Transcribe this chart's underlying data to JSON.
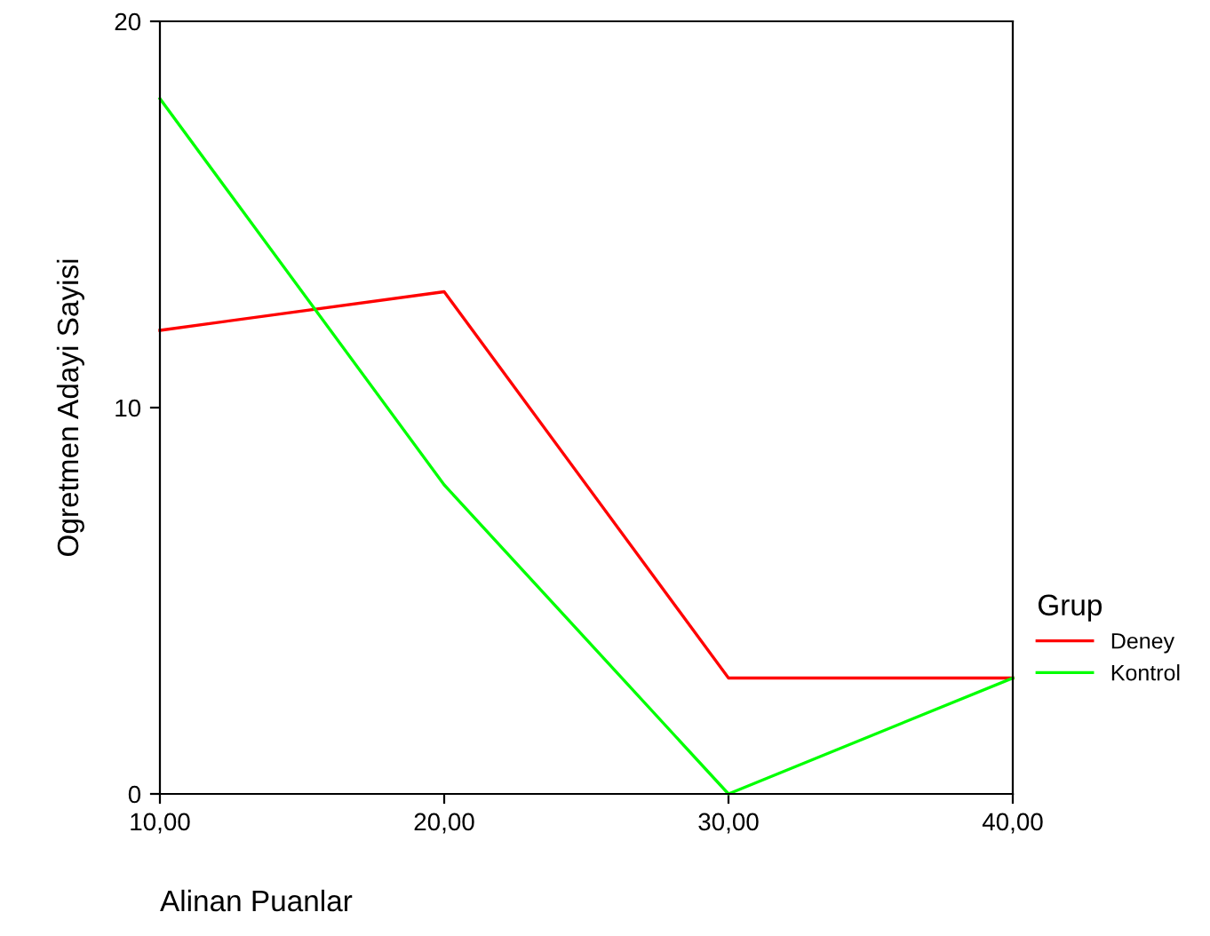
{
  "chart_data": {
    "type": "line",
    "xlabel": "Alinan Puanlar",
    "ylabel": "Ogretmen Adayi Sayisi",
    "legend_title": "Grup",
    "x": [
      10,
      20,
      30,
      40
    ],
    "series": [
      {
        "name": "Deney",
        "color": "#ff0000",
        "values": [
          12,
          13,
          3,
          3
        ]
      },
      {
        "name": "Kontrol",
        "color": "#00ff00",
        "values": [
          18,
          8,
          0,
          3
        ]
      }
    ],
    "xlim": [
      10,
      40
    ],
    "ylim": [
      0,
      20
    ],
    "xticks": [
      {
        "value": 10,
        "label": "10,00"
      },
      {
        "value": 20,
        "label": "20,00"
      },
      {
        "value": 30,
        "label": "30,00"
      },
      {
        "value": 40,
        "label": "40,00"
      }
    ],
    "yticks": [
      0,
      10,
      20
    ],
    "grid": false,
    "legend": "right",
    "marker": "none",
    "line_style": "solid"
  }
}
